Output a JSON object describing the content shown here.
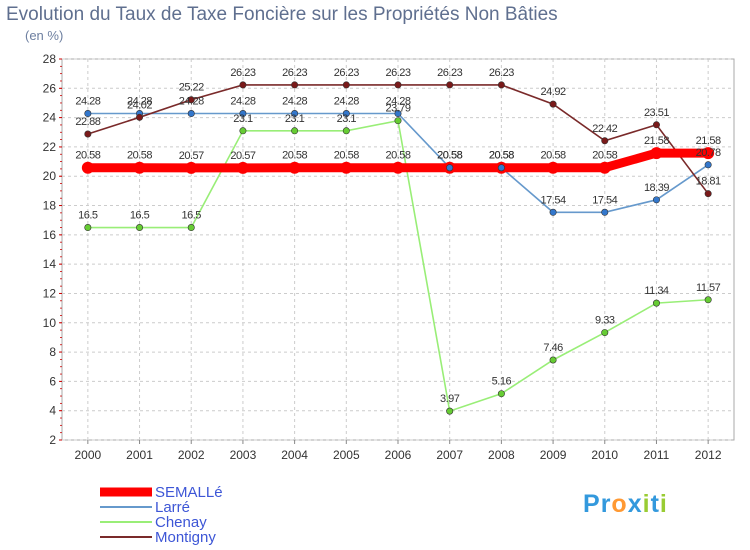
{
  "chart_data": {
    "type": "line",
    "title": "Evolution du Taux de Taxe Foncière sur les Propriétés Non Bâties",
    "unit_label": "(en %)",
    "x": [
      "2000",
      "2001",
      "2002",
      "2003",
      "2004",
      "2005",
      "2006",
      "2007",
      "2008",
      "2009",
      "2010",
      "2011",
      "2012"
    ],
    "yticks": [
      2,
      4,
      6,
      8,
      10,
      12,
      14,
      16,
      18,
      20,
      22,
      24,
      26,
      28
    ],
    "ylim": [
      2,
      28
    ],
    "grid": true,
    "legend_position": "bottom-left",
    "series": [
      {
        "name": "SEMALLé",
        "color": "#ff0000",
        "bold": true,
        "values": [
          20.58,
          20.58,
          20.57,
          20.57,
          20.58,
          20.58,
          20.58,
          20.58,
          20.58,
          20.58,
          20.58,
          21.58,
          21.58
        ],
        "labels": [
          "20.58",
          "20.58",
          "20.57",
          "20.57",
          "20.58",
          "20.58",
          "20.58",
          "20.58",
          "20.58",
          "20.58",
          "20.58",
          "21.58",
          "21.58"
        ]
      },
      {
        "name": "Larré",
        "color": "#6699cc",
        "marker": "#3377cc",
        "values": [
          24.28,
          24.28,
          24.28,
          24.28,
          24.28,
          24.28,
          24.28,
          20.58,
          20.58,
          17.54,
          17.54,
          18.39,
          20.78
        ],
        "labels": [
          "24.28",
          "24.28",
          "24.28",
          "24.28",
          "24.28",
          "24.28",
          "24.28",
          "20.58",
          "20.58",
          "17.54",
          "17.54",
          "18.39",
          "20.78"
        ]
      },
      {
        "name": "Chenay",
        "color": "#99ee77",
        "marker": "#66cc33",
        "values": [
          16.5,
          16.5,
          16.5,
          23.1,
          23.1,
          23.1,
          23.79,
          3.97,
          5.16,
          7.46,
          9.33,
          11.34,
          11.57
        ],
        "labels": [
          "16.5",
          "16.5",
          "16.5",
          "23.1",
          "23.1",
          "23.1",
          "23.79",
          "3.97",
          "5.16",
          "7.46",
          "9.33",
          "11.34",
          "11.57"
        ]
      },
      {
        "name": "Montigny",
        "color": "#7a2a2a",
        "marker": "#7a1a1a",
        "values": [
          22.88,
          24.02,
          25.22,
          26.23,
          26.23,
          26.23,
          26.23,
          26.23,
          26.23,
          24.92,
          22.42,
          23.51,
          18.81
        ],
        "labels": [
          "22.88",
          "24.02",
          "25.22",
          "26.23",
          "26.23",
          "26.23",
          "26.23",
          "26.23",
          "26.23",
          "24.92",
          "22.42",
          "23.51",
          "18.81"
        ]
      }
    ]
  },
  "logo": {
    "letters": [
      "P",
      "r",
      "o",
      "x",
      "i",
      "t",
      "i"
    ],
    "colors": [
      "#3399dd",
      "#3399dd",
      "#ff9933",
      "#3399dd",
      "#99cc33",
      "#3399dd",
      "#99cc33"
    ]
  }
}
